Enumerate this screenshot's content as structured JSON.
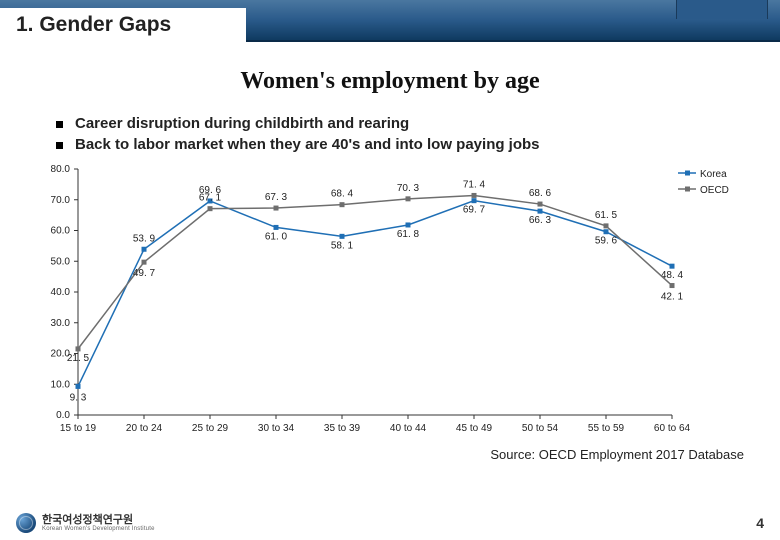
{
  "header": {
    "section_label": "1. Gender Gaps"
  },
  "subtitle": "Women's employment by age",
  "bullets": [
    "Career disruption during childbirth and rearing",
    "Back to labor market when they are 40's and into low paying jobs"
  ],
  "chart": {
    "type": "line",
    "background_color": "#ffffff",
    "axis_color": "#333333",
    "yaxis": {
      "min": 0.0,
      "max": 80.0,
      "step": 10.0,
      "labels": [
        "0.0",
        "10.0",
        "20.0",
        "30.0",
        "40.0",
        "50.0",
        "60.0",
        "70.0",
        "80.0"
      ]
    },
    "categories": [
      "15 to 19",
      "20 to 24",
      "25 to 29",
      "30 to 34",
      "35 to 39",
      "40 to 44",
      "45 to 49",
      "50 to 54",
      "55 to 59",
      "60 to 64"
    ],
    "series": [
      {
        "name": "Korea",
        "color": "#1f6fb5",
        "values": [
          9.3,
          53.9,
          69.6,
          61.0,
          58.1,
          61.8,
          69.7,
          66.3,
          59.6,
          48.4
        ],
        "marker": "square",
        "label_dy": [
          14,
          -8,
          -8,
          12,
          12,
          12,
          12,
          12,
          12,
          12
        ]
      },
      {
        "name": "OECD",
        "color": "#6e6e6e",
        "values": [
          21.5,
          49.7,
          67.1,
          67.3,
          68.4,
          70.3,
          71.4,
          68.6,
          61.5,
          42.1
        ],
        "marker": "square",
        "label_dy": [
          12,
          14,
          -8,
          -8,
          -8,
          -8,
          -8,
          -8,
          -8,
          14
        ]
      }
    ],
    "label_fontsize": 10,
    "marker_size": 5,
    "line_width": 1.5,
    "legend": {
      "position": "right",
      "items": [
        "Korea",
        "OECD"
      ]
    }
  },
  "source": "Source: OECD Employment 2017 Database",
  "footer": {
    "org_name": "한국여성정책연구원",
    "org_sub": "Korean Women's Development Institute",
    "page_number": "4"
  }
}
